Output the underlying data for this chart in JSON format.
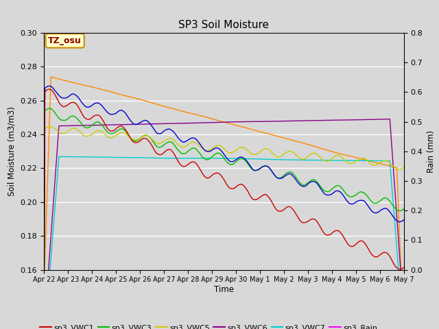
{
  "title": "SP3 Soil Moisture",
  "xlabel": "Time",
  "ylabel_left": "Soil Moisture (m3/m3)",
  "ylabel_right": "Rain (mm)",
  "ylim_left": [
    0.16,
    0.3
  ],
  "ylim_right": [
    0.0,
    0.8
  ],
  "yticks_left": [
    0.16,
    0.18,
    0.2,
    0.22,
    0.24,
    0.26,
    0.28,
    0.3
  ],
  "yticks_right": [
    0.0,
    0.1,
    0.2,
    0.3,
    0.4,
    0.5,
    0.6,
    0.7,
    0.8
  ],
  "bg_color": "#d8d8d8",
  "plot_bg_color": "#d8d8d8",
  "grid_color": "#ffffff",
  "label_box_color": "#ffffcc",
  "label_box_edge": "#cc8800",
  "label_text": "TZ_osu",
  "colors": {
    "VWC1": "#cc0000",
    "VWC2": "#0000cc",
    "VWC3": "#00bb00",
    "VWC4": "#ff8800",
    "VWC5": "#cccc00",
    "VWC6": "#880088",
    "VWC7": "#00cccc",
    "Rain": "#ff00ff"
  },
  "tick_labels": [
    "Apr 22",
    "Apr 23",
    "Apr 24",
    "Apr 25",
    "Apr 26",
    "Apr 27",
    "Apr 28",
    "Apr 29",
    "Apr 30",
    "May 1",
    "May 2",
    "May 3",
    "May 4",
    "May 5",
    "May 6",
    "May 7"
  ]
}
